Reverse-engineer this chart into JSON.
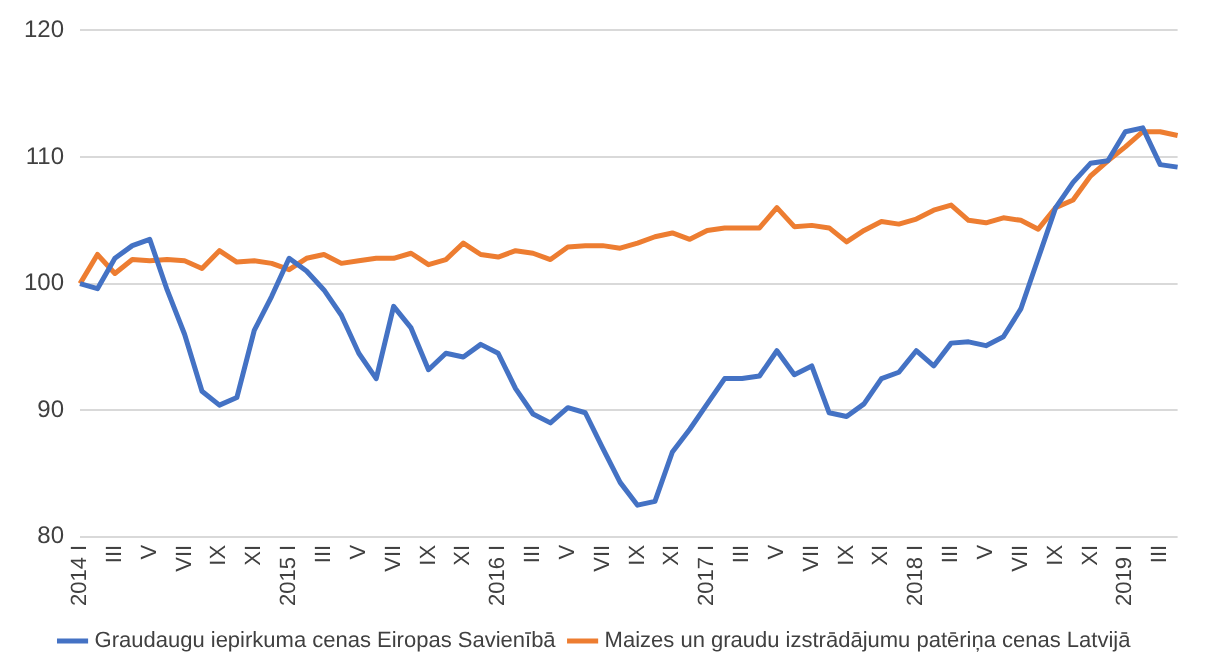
{
  "chart_data": {
    "type": "line",
    "categories": [
      "2014 I",
      null,
      "III",
      null,
      "V",
      null,
      "VII",
      null,
      "IX",
      null,
      "XI",
      null,
      "2015 I",
      null,
      "III",
      null,
      "V",
      null,
      "VII",
      null,
      "IX",
      null,
      "XI",
      null,
      "2016 I",
      null,
      "III",
      null,
      "V",
      null,
      "VII",
      null,
      "IX",
      null,
      "XI",
      null,
      "2017 I",
      null,
      "III",
      null,
      "V",
      null,
      "VII",
      null,
      "IX",
      null,
      "XI",
      null,
      "2018 I",
      null,
      "III",
      null,
      "V",
      null,
      "VII",
      null,
      "IX",
      null,
      "XI",
      null,
      "2019 I",
      null,
      "III",
      null
    ],
    "series": [
      {
        "name": "Graudaugu iepirkuma cenas Eiropas Savienībā",
        "color": "#4472c4",
        "values": [
          100,
          99.6,
          102,
          103,
          103.5,
          99.5,
          96,
          91.5,
          90.4,
          91,
          96.3,
          99,
          102,
          101,
          99.5,
          97.5,
          94.5,
          92.5,
          98.2,
          96.5,
          93.2,
          94.5,
          94.2,
          95.2,
          94.5,
          91.7,
          89.7,
          89,
          90.2,
          89.8,
          87,
          84.3,
          82.5,
          82.8,
          86.7,
          88.5,
          90.5,
          92.5,
          92.5,
          92.7,
          94.7,
          92.8,
          93.5,
          89.8,
          89.5,
          90.5,
          92.5,
          93,
          94.7,
          93.5,
          95.3,
          95.4,
          95.1,
          95.8,
          98,
          102,
          106,
          108,
          109.5,
          109.7,
          112,
          112.3,
          109.4,
          109.2
        ]
      },
      {
        "name": "Maizes un graudu izstrādājumu patēriņa cenas Latvijā",
        "color": "#ed7d31",
        "values": [
          100,
          102.3,
          100.8,
          101.9,
          101.8,
          101.9,
          101.8,
          101.2,
          102.6,
          101.7,
          101.8,
          101.6,
          101.1,
          102,
          102.3,
          101.6,
          101.8,
          102,
          102,
          102.4,
          101.5,
          101.9,
          103.2,
          102.3,
          102.1,
          102.6,
          102.4,
          101.9,
          102.9,
          103,
          103,
          102.8,
          103.2,
          103.7,
          104,
          103.5,
          104.2,
          104.4,
          104.4,
          104.4,
          106,
          104.5,
          104.6,
          104.4,
          103.3,
          104.2,
          104.9,
          104.7,
          105.1,
          105.8,
          106.2,
          105,
          104.8,
          105.2,
          105,
          104.3,
          106,
          106.6,
          108.5,
          109.7,
          110.8,
          112,
          112,
          111.7
        ]
      }
    ],
    "ylim": [
      80,
      120
    ],
    "yticks": [
      80,
      90,
      100,
      110,
      120
    ],
    "grid": "y",
    "legend": "bottom",
    "marker": "none",
    "line_style": "solid"
  }
}
